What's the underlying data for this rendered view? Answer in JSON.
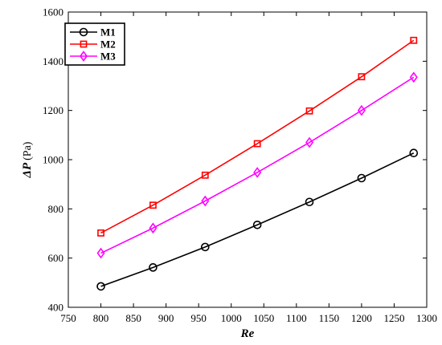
{
  "chart_data": {
    "type": "line",
    "xlabel": "Re",
    "ylabel_symbol": "ΔP",
    "ylabel_unit": "(Pa)",
    "xlim": [
      750,
      1300
    ],
    "ylim": [
      400,
      1600
    ],
    "xticks": [
      750,
      800,
      850,
      900,
      950,
      1000,
      1050,
      1100,
      1150,
      1200,
      1250,
      1300
    ],
    "yticks": [
      400,
      600,
      800,
      1000,
      1200,
      1400,
      1600
    ],
    "grid": false,
    "legend_position": "top-left",
    "x": [
      800,
      880,
      960,
      1040,
      1120,
      1200,
      1280
    ],
    "series": [
      {
        "name": "M1",
        "color": "#000000",
        "marker": "circle",
        "values": [
          485,
          562,
          645,
          735,
          828,
          925,
          1027
        ]
      },
      {
        "name": "M2",
        "color": "#ff0000",
        "marker": "square",
        "values": [
          702,
          815,
          937,
          1065,
          1198,
          1337,
          1485
        ]
      },
      {
        "name": "M3",
        "color": "#ff00ff",
        "marker": "diamond",
        "values": [
          620,
          722,
          832,
          948,
          1070,
          1200,
          1335
        ]
      }
    ]
  }
}
